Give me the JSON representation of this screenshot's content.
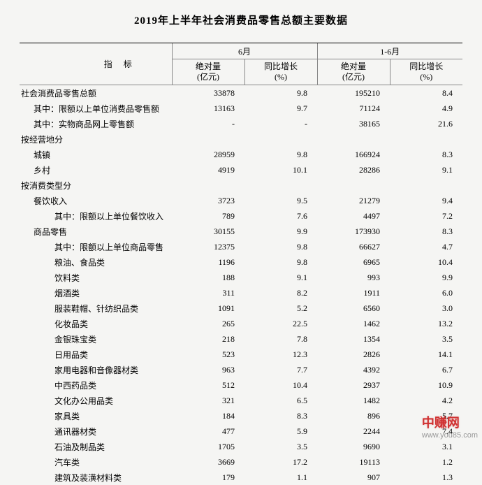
{
  "title": "2019年上半年社会消费品零售总额主要数据",
  "header": {
    "indicator": "指标",
    "period1": "6月",
    "period2": "1-6月",
    "abs_label": "绝对量",
    "abs_unit": "(亿元)",
    "growth_label": "同比增长",
    "growth_unit": "(%)"
  },
  "rows": [
    {
      "label": "社会消费品零售总额",
      "indent": 0,
      "a1": "33878",
      "g1": "9.8",
      "a2": "195210",
      "g2": "8.4"
    },
    {
      "label": "其中：限额以上单位消费品零售额",
      "indent": 1,
      "a1": "13163",
      "g1": "9.7",
      "a2": "71124",
      "g2": "4.9"
    },
    {
      "label": "其中：实物商品网上零售额",
      "indent": 1,
      "a1": "-",
      "g1": "-",
      "a2": "38165",
      "g2": "21.6"
    },
    {
      "label": "按经营地分",
      "indent": 0,
      "a1": "",
      "g1": "",
      "a2": "",
      "g2": ""
    },
    {
      "label": "城镇",
      "indent": 1,
      "a1": "28959",
      "g1": "9.8",
      "a2": "166924",
      "g2": "8.3"
    },
    {
      "label": "乡村",
      "indent": 1,
      "a1": "4919",
      "g1": "10.1",
      "a2": "28286",
      "g2": "9.1"
    },
    {
      "label": "按消费类型分",
      "indent": 0,
      "a1": "",
      "g1": "",
      "a2": "",
      "g2": ""
    },
    {
      "label": "餐饮收入",
      "indent": 1,
      "a1": "3723",
      "g1": "9.5",
      "a2": "21279",
      "g2": "9.4"
    },
    {
      "label": "其中：限额以上单位餐饮收入",
      "indent": 2,
      "a1": "789",
      "g1": "7.6",
      "a2": "4497",
      "g2": "7.2"
    },
    {
      "label": "商品零售",
      "indent": 1,
      "a1": "30155",
      "g1": "9.9",
      "a2": "173930",
      "g2": "8.3"
    },
    {
      "label": "其中：限额以上单位商品零售",
      "indent": 2,
      "a1": "12375",
      "g1": "9.8",
      "a2": "66627",
      "g2": "4.7"
    },
    {
      "label": "粮油、食品类",
      "indent": 2,
      "a1": "1196",
      "g1": "9.8",
      "a2": "6965",
      "g2": "10.4"
    },
    {
      "label": "饮料类",
      "indent": 2,
      "a1": "188",
      "g1": "9.1",
      "a2": "993",
      "g2": "9.9"
    },
    {
      "label": "烟酒类",
      "indent": 2,
      "a1": "311",
      "g1": "8.2",
      "a2": "1911",
      "g2": "6.0"
    },
    {
      "label": "服装鞋帽、针纺织品类",
      "indent": 2,
      "a1": "1091",
      "g1": "5.2",
      "a2": "6560",
      "g2": "3.0"
    },
    {
      "label": "化妆品类",
      "indent": 2,
      "a1": "265",
      "g1": "22.5",
      "a2": "1462",
      "g2": "13.2"
    },
    {
      "label": "金银珠宝类",
      "indent": 2,
      "a1": "218",
      "g1": "7.8",
      "a2": "1354",
      "g2": "3.5"
    },
    {
      "label": "日用品类",
      "indent": 2,
      "a1": "523",
      "g1": "12.3",
      "a2": "2826",
      "g2": "14.1"
    },
    {
      "label": "家用电器和音像器材类",
      "indent": 2,
      "a1": "963",
      "g1": "7.7",
      "a2": "4392",
      "g2": "6.7"
    },
    {
      "label": "中西药品类",
      "indent": 2,
      "a1": "512",
      "g1": "10.4",
      "a2": "2937",
      "g2": "10.9"
    },
    {
      "label": "文化办公用品类",
      "indent": 2,
      "a1": "321",
      "g1": "6.5",
      "a2": "1482",
      "g2": "4.2"
    },
    {
      "label": "家具类",
      "indent": 2,
      "a1": "184",
      "g1": "8.3",
      "a2": "896",
      "g2": "5.7"
    },
    {
      "label": "通讯器材类",
      "indent": 2,
      "a1": "477",
      "g1": "5.9",
      "a2": "2244",
      "g2": "7.4"
    },
    {
      "label": "石油及制品类",
      "indent": 2,
      "a1": "1705",
      "g1": "3.5",
      "a2": "9690",
      "g2": "3.1"
    },
    {
      "label": "汽车类",
      "indent": 2,
      "a1": "3669",
      "g1": "17.2",
      "a2": "19113",
      "g2": "1.2"
    },
    {
      "label": "建筑及装潢材料类",
      "indent": 2,
      "a1": "179",
      "g1": "1.1",
      "a2": "907",
      "g2": "1.3"
    }
  ],
  "watermark": {
    "text": "中赚网",
    "url": "www.you85.com"
  }
}
